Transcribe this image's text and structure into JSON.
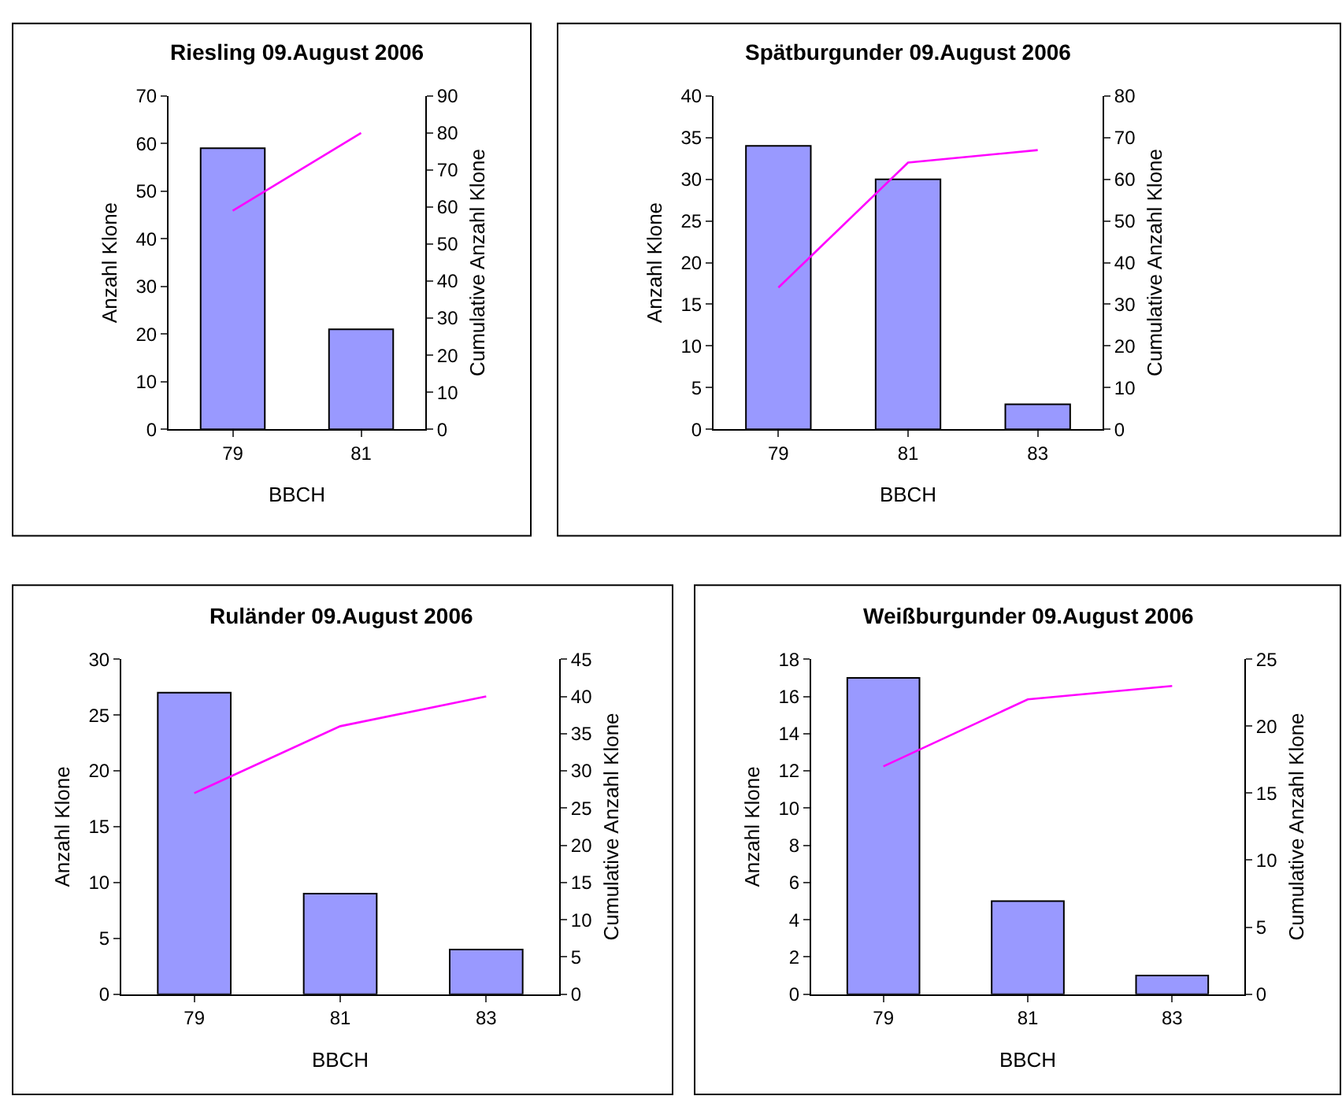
{
  "chart_data": [
    {
      "type": "bar",
      "title": "Riesling 09.August 2006",
      "xlabel": "BBCH",
      "ylabel": "Anzahl Klone",
      "y2label": "Cumulative Anzahl Klone",
      "categories": [
        "79",
        "81"
      ],
      "series": [
        {
          "color": "#9999ff",
          "values": [
            59,
            21
          ]
        },
        {
          "type": "line",
          "axis": "y2",
          "color": "#ff00ff",
          "marker": "none",
          "line_style": "solid",
          "values": [
            59,
            80
          ]
        }
      ],
      "ylim": [
        0,
        70
      ],
      "yticks": [
        0,
        10,
        20,
        30,
        40,
        50,
        60,
        70
      ],
      "y2lim": [
        0,
        90
      ],
      "y2ticks": [
        0,
        10,
        20,
        30,
        40,
        50,
        60,
        70,
        80,
        90
      ]
    },
    {
      "type": "bar",
      "title": "Spätburgunder 09.August 2006",
      "xlabel": "BBCH",
      "ylabel": "Anzahl Klone",
      "y2label": "Cumulative Anzahl Klone",
      "categories": [
        "79",
        "81",
        "83"
      ],
      "series": [
        {
          "color": "#9999ff",
          "values": [
            34,
            30,
            3
          ]
        },
        {
          "type": "line",
          "axis": "y2",
          "color": "#ff00ff",
          "marker": "none",
          "line_style": "solid",
          "values": [
            34,
            64,
            67
          ]
        }
      ],
      "ylim": [
        0,
        40
      ],
      "yticks": [
        0,
        5,
        10,
        15,
        20,
        25,
        30,
        35,
        40
      ],
      "y2lim": [
        0,
        80
      ],
      "y2ticks": [
        0,
        10,
        20,
        30,
        40,
        50,
        60,
        70,
        80
      ]
    },
    {
      "type": "bar",
      "title": "Ruländer 09.August 2006",
      "xlabel": "BBCH",
      "ylabel": "Anzahl Klone",
      "y2label": "Cumulative Anzahl Klone",
      "categories": [
        "79",
        "81",
        "83"
      ],
      "series": [
        {
          "color": "#9999ff",
          "values": [
            27,
            9,
            4
          ]
        },
        {
          "type": "line",
          "axis": "y2",
          "color": "#ff00ff",
          "marker": "none",
          "line_style": "solid",
          "values": [
            27,
            36,
            40
          ]
        }
      ],
      "ylim": [
        0,
        30
      ],
      "yticks": [
        0,
        5,
        10,
        15,
        20,
        25,
        30
      ],
      "y2lim": [
        0,
        45
      ],
      "y2ticks": [
        0,
        5,
        10,
        15,
        20,
        25,
        30,
        35,
        40,
        45
      ]
    },
    {
      "type": "bar",
      "title": "Weißburgunder 09.August 2006",
      "xlabel": "BBCH",
      "ylabel": "Anzahl Klone",
      "y2label": "Cumulative Anzahl Klone",
      "categories": [
        "79",
        "81",
        "83"
      ],
      "series": [
        {
          "color": "#9999ff",
          "values": [
            17,
            5,
            1
          ]
        },
        {
          "type": "line",
          "axis": "y2",
          "color": "#ff00ff",
          "marker": "none",
          "line_style": "solid",
          "values": [
            17,
            22,
            23
          ]
        }
      ],
      "ylim": [
        0,
        18
      ],
      "yticks": [
        0,
        2,
        4,
        6,
        8,
        10,
        12,
        14,
        16,
        18
      ],
      "y2lim": [
        0,
        25
      ],
      "y2ticks": [
        0,
        5,
        10,
        15,
        20,
        25
      ]
    }
  ]
}
